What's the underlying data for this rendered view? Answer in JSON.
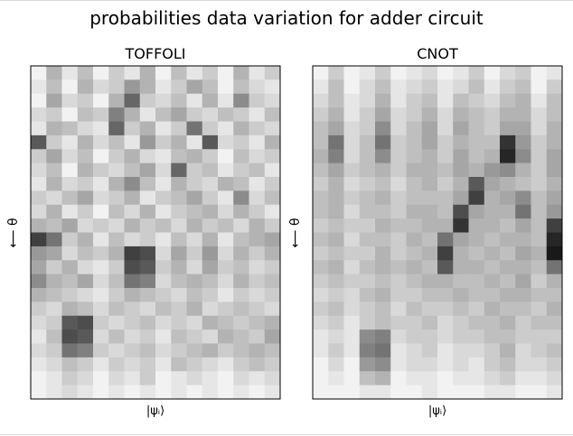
{
  "figure": {
    "title": "probabilities data variation for adder circuit"
  },
  "chart_data": [
    {
      "type": "heatmap",
      "title": "TOFFOLI",
      "xlabel": "|ψᵢ⟩",
      "ylabel": "⟵ θ",
      "colormap": "gray_r",
      "colors": {
        "low": "#ffffff",
        "high": "#000000"
      },
      "rows": 24,
      "cols": 16,
      "values": [
        [
          0.05,
          0.3,
          0.1,
          0.25,
          0.05,
          0.2,
          0.1,
          0.3,
          0.05,
          0.25,
          0.1,
          0.2,
          0.05,
          0.3,
          0.1,
          0.2
        ],
        [
          0.1,
          0.25,
          0.05,
          0.3,
          0.15,
          0.2,
          0.4,
          0.3,
          0.1,
          0.2,
          0.35,
          0.25,
          0.05,
          0.25,
          0.15,
          0.1
        ],
        [
          0.05,
          0.35,
          0.15,
          0.2,
          0.05,
          0.3,
          0.6,
          0.2,
          0.15,
          0.25,
          0.1,
          0.3,
          0.1,
          0.45,
          0.2,
          0.15
        ],
        [
          0.15,
          0.2,
          0.05,
          0.25,
          0.2,
          0.5,
          0.3,
          0.1,
          0.25,
          0.35,
          0.2,
          0.15,
          0.25,
          0.2,
          0.1,
          0.25
        ],
        [
          0.1,
          0.3,
          0.25,
          0.15,
          0.1,
          0.6,
          0.2,
          0.3,
          0.1,
          0.2,
          0.55,
          0.2,
          0.1,
          0.3,
          0.2,
          0.15
        ],
        [
          0.65,
          0.2,
          0.1,
          0.3,
          0.15,
          0.25,
          0.1,
          0.4,
          0.2,
          0.3,
          0.1,
          0.65,
          0.15,
          0.2,
          0.1,
          0.3
        ],
        [
          0.2,
          0.35,
          0.15,
          0.25,
          0.05,
          0.2,
          0.3,
          0.15,
          0.1,
          0.25,
          0.3,
          0.2,
          0.05,
          0.25,
          0.15,
          0.2
        ],
        [
          0.15,
          0.25,
          0.05,
          0.3,
          0.2,
          0.15,
          0.25,
          0.35,
          0.15,
          0.6,
          0.2,
          0.25,
          0.1,
          0.2,
          0.25,
          0.1
        ],
        [
          0.1,
          0.3,
          0.15,
          0.2,
          0.1,
          0.3,
          0.45,
          0.25,
          0.1,
          0.3,
          0.2,
          0.15,
          0.3,
          0.25,
          0.1,
          0.2
        ],
        [
          0.2,
          0.15,
          0.25,
          0.35,
          0.15,
          0.2,
          0.3,
          0.1,
          0.2,
          0.25,
          0.35,
          0.2,
          0.1,
          0.45,
          0.15,
          0.25
        ],
        [
          0.15,
          0.3,
          0.1,
          0.2,
          0.05,
          0.25,
          0.15,
          0.3,
          0.1,
          0.2,
          0.25,
          0.3,
          0.15,
          0.3,
          0.2,
          0.1
        ],
        [
          0.3,
          0.25,
          0.35,
          0.15,
          0.2,
          0.15,
          0.3,
          0.2,
          0.25,
          0.15,
          0.3,
          0.2,
          0.25,
          0.15,
          0.3,
          0.2
        ],
        [
          0.75,
          0.55,
          0.2,
          0.3,
          0.1,
          0.25,
          0.15,
          0.2,
          0.1,
          0.25,
          0.15,
          0.3,
          0.1,
          0.25,
          0.3,
          0.35
        ],
        [
          0.4,
          0.35,
          0.15,
          0.25,
          0.2,
          0.3,
          0.75,
          0.7,
          0.15,
          0.35,
          0.2,
          0.4,
          0.15,
          0.3,
          0.2,
          0.3
        ],
        [
          0.35,
          0.2,
          0.3,
          0.15,
          0.1,
          0.2,
          0.7,
          0.65,
          0.2,
          0.3,
          0.15,
          0.35,
          0.2,
          0.25,
          0.15,
          0.2
        ],
        [
          0.45,
          0.3,
          0.25,
          0.35,
          0.15,
          0.25,
          0.55,
          0.5,
          0.15,
          0.25,
          0.3,
          0.25,
          0.15,
          0.3,
          0.2,
          0.25
        ],
        [
          0.3,
          0.25,
          0.2,
          0.15,
          0.1,
          0.2,
          0.3,
          0.25,
          0.2,
          0.15,
          0.25,
          0.2,
          0.1,
          0.2,
          0.15,
          0.2
        ],
        [
          0.2,
          0.15,
          0.3,
          0.25,
          0.15,
          0.25,
          0.2,
          0.15,
          0.25,
          0.2,
          0.3,
          0.15,
          0.2,
          0.25,
          0.2,
          0.15
        ],
        [
          0.15,
          0.2,
          0.65,
          0.7,
          0.2,
          0.15,
          0.2,
          0.25,
          0.15,
          0.2,
          0.15,
          0.3,
          0.25,
          0.2,
          0.25,
          0.3
        ],
        [
          0.1,
          0.25,
          0.7,
          0.65,
          0.15,
          0.25,
          0.15,
          0.2,
          0.1,
          0.25,
          0.2,
          0.15,
          0.3,
          0.25,
          0.2,
          0.35
        ],
        [
          0.15,
          0.2,
          0.55,
          0.5,
          0.2,
          0.15,
          0.2,
          0.25,
          0.15,
          0.2,
          0.25,
          0.3,
          0.2,
          0.25,
          0.3,
          0.25
        ],
        [
          0.1,
          0.15,
          0.25,
          0.2,
          0.1,
          0.2,
          0.15,
          0.2,
          0.1,
          0.25,
          0.2,
          0.15,
          0.1,
          0.2,
          0.25,
          0.2
        ],
        [
          0.05,
          0.1,
          0.2,
          0.15,
          0.05,
          0.15,
          0.1,
          0.2,
          0.05,
          0.1,
          0.15,
          0.1,
          0.05,
          0.15,
          0.1,
          0.15
        ],
        [
          0.05,
          0.1,
          0.15,
          0.1,
          0.05,
          0.1,
          0.05,
          0.1,
          0.05,
          0.1,
          0.05,
          0.1,
          0.05,
          0.1,
          0.05,
          0.1
        ]
      ]
    },
    {
      "type": "heatmap",
      "title": "CNOT",
      "xlabel": "|ψᵢ⟩",
      "ylabel": "⟵ θ",
      "colormap": "gray_r",
      "colors": {
        "low": "#ffffff",
        "high": "#000000"
      },
      "rows": 24,
      "cols": 16,
      "values": [
        [
          0.05,
          0.2,
          0.05,
          0.1,
          0.2,
          0.05,
          0.1,
          0.15,
          0.05,
          0.1,
          0.2,
          0.05,
          0.15,
          0.2,
          0.05,
          0.1
        ],
        [
          0.1,
          0.25,
          0.05,
          0.15,
          0.25,
          0.1,
          0.15,
          0.2,
          0.1,
          0.15,
          0.25,
          0.1,
          0.2,
          0.25,
          0.05,
          0.2
        ],
        [
          0.15,
          0.25,
          0.1,
          0.15,
          0.3,
          0.1,
          0.2,
          0.25,
          0.1,
          0.25,
          0.2,
          0.15,
          0.25,
          0.3,
          0.1,
          0.25
        ],
        [
          0.2,
          0.3,
          0.1,
          0.2,
          0.35,
          0.15,
          0.2,
          0.3,
          0.15,
          0.3,
          0.25,
          0.2,
          0.3,
          0.3,
          0.15,
          0.25
        ],
        [
          0.25,
          0.35,
          0.15,
          0.2,
          0.45,
          0.15,
          0.25,
          0.35,
          0.15,
          0.35,
          0.25,
          0.2,
          0.35,
          0.35,
          0.15,
          0.3
        ],
        [
          0.25,
          0.55,
          0.15,
          0.25,
          0.55,
          0.2,
          0.25,
          0.35,
          0.2,
          0.3,
          0.25,
          0.25,
          0.8,
          0.4,
          0.2,
          0.3
        ],
        [
          0.3,
          0.5,
          0.15,
          0.25,
          0.45,
          0.2,
          0.25,
          0.3,
          0.2,
          0.35,
          0.25,
          0.3,
          0.85,
          0.45,
          0.2,
          0.35
        ],
        [
          0.25,
          0.35,
          0.2,
          0.25,
          0.3,
          0.2,
          0.3,
          0.3,
          0.25,
          0.35,
          0.3,
          0.4,
          0.45,
          0.3,
          0.2,
          0.35
        ],
        [
          0.2,
          0.3,
          0.15,
          0.2,
          0.25,
          0.15,
          0.25,
          0.3,
          0.2,
          0.3,
          0.65,
          0.35,
          0.3,
          0.25,
          0.2,
          0.3
        ],
        [
          0.25,
          0.3,
          0.2,
          0.25,
          0.3,
          0.2,
          0.25,
          0.25,
          0.25,
          0.35,
          0.75,
          0.3,
          0.35,
          0.45,
          0.25,
          0.35
        ],
        [
          0.25,
          0.3,
          0.15,
          0.25,
          0.25,
          0.2,
          0.3,
          0.3,
          0.25,
          0.7,
          0.35,
          0.3,
          0.3,
          0.55,
          0.25,
          0.4
        ],
        [
          0.2,
          0.25,
          0.2,
          0.2,
          0.3,
          0.25,
          0.25,
          0.3,
          0.3,
          0.8,
          0.3,
          0.3,
          0.25,
          0.35,
          0.25,
          0.75
        ],
        [
          0.25,
          0.3,
          0.15,
          0.25,
          0.25,
          0.2,
          0.3,
          0.25,
          0.55,
          0.35,
          0.3,
          0.25,
          0.3,
          0.3,
          0.25,
          0.85
        ],
        [
          0.2,
          0.25,
          0.2,
          0.2,
          0.3,
          0.2,
          0.25,
          0.3,
          0.75,
          0.3,
          0.25,
          0.3,
          0.25,
          0.35,
          0.3,
          0.9
        ],
        [
          0.25,
          0.3,
          0.15,
          0.25,
          0.3,
          0.25,
          0.3,
          0.25,
          0.65,
          0.3,
          0.3,
          0.25,
          0.3,
          0.3,
          0.25,
          0.55
        ],
        [
          0.2,
          0.25,
          0.2,
          0.2,
          0.25,
          0.2,
          0.25,
          0.3,
          0.3,
          0.25,
          0.25,
          0.3,
          0.25,
          0.35,
          0.2,
          0.3
        ],
        [
          0.15,
          0.2,
          0.15,
          0.25,
          0.3,
          0.2,
          0.2,
          0.25,
          0.25,
          0.3,
          0.25,
          0.25,
          0.3,
          0.3,
          0.25,
          0.25
        ],
        [
          0.2,
          0.25,
          0.15,
          0.2,
          0.25,
          0.15,
          0.25,
          0.2,
          0.2,
          0.25,
          0.2,
          0.3,
          0.25,
          0.25,
          0.2,
          0.3
        ],
        [
          0.15,
          0.2,
          0.1,
          0.2,
          0.25,
          0.2,
          0.2,
          0.25,
          0.15,
          0.2,
          0.25,
          0.25,
          0.3,
          0.2,
          0.25,
          0.25
        ],
        [
          0.1,
          0.15,
          0.1,
          0.45,
          0.5,
          0.15,
          0.2,
          0.2,
          0.15,
          0.2,
          0.2,
          0.25,
          0.25,
          0.2,
          0.2,
          0.2
        ],
        [
          0.1,
          0.2,
          0.1,
          0.5,
          0.55,
          0.1,
          0.15,
          0.2,
          0.1,
          0.15,
          0.15,
          0.2,
          0.3,
          0.15,
          0.2,
          0.25
        ],
        [
          0.05,
          0.15,
          0.05,
          0.4,
          0.45,
          0.1,
          0.15,
          0.15,
          0.1,
          0.15,
          0.1,
          0.2,
          0.25,
          0.15,
          0.15,
          0.2
        ],
        [
          0.05,
          0.1,
          0.05,
          0.25,
          0.3,
          0.05,
          0.1,
          0.1,
          0.05,
          0.1,
          0.1,
          0.15,
          0.2,
          0.1,
          0.1,
          0.15
        ],
        [
          0.05,
          0.05,
          0.05,
          0.1,
          0.1,
          0.05,
          0.05,
          0.1,
          0.05,
          0.05,
          0.05,
          0.1,
          0.1,
          0.05,
          0.05,
          0.1
        ]
      ]
    }
  ]
}
